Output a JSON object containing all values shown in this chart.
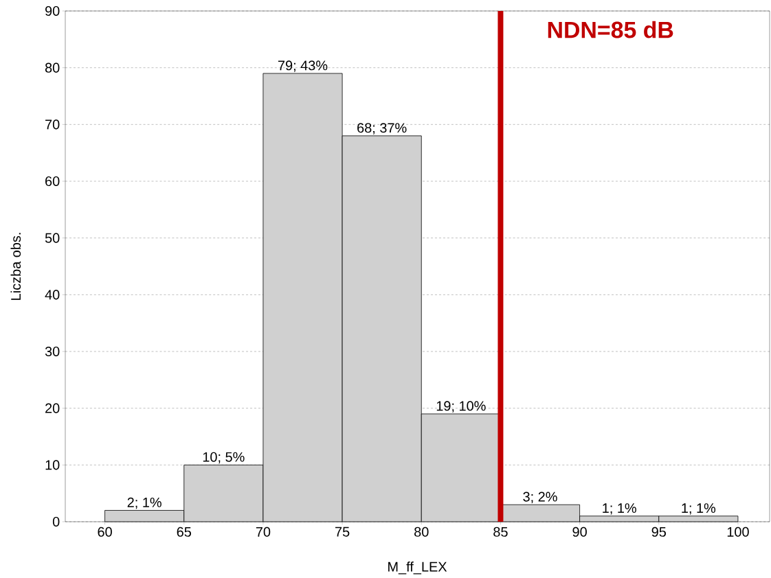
{
  "chart_data": {
    "type": "histogram",
    "xlabel": "M_ff_LEX",
    "ylabel": "Liczba obs.",
    "bins": [
      60,
      65,
      70,
      75,
      80,
      85,
      90,
      95,
      100
    ],
    "values": [
      2,
      10,
      79,
      68,
      19,
      3,
      1,
      1
    ],
    "value_labels": [
      "2; 1%",
      "10; 5%",
      "79; 43%",
      "68; 37%",
      "19; 10%",
      "3; 2%",
      "1; 1%",
      "1; 1%"
    ],
    "color": "#d0d0d0",
    "xlim": [
      57.5,
      102
    ],
    "ylim": [
      0,
      90
    ],
    "xticks": [
      60,
      65,
      70,
      75,
      80,
      85,
      90,
      95,
      100
    ],
    "yticks": [
      0,
      10,
      20,
      30,
      40,
      50,
      60,
      70,
      80,
      90
    ],
    "grid": "y",
    "ref_lines": [
      {
        "axis": "x",
        "value": 85,
        "label": "NDN=85 dB",
        "color": "#c00000"
      }
    ]
  }
}
